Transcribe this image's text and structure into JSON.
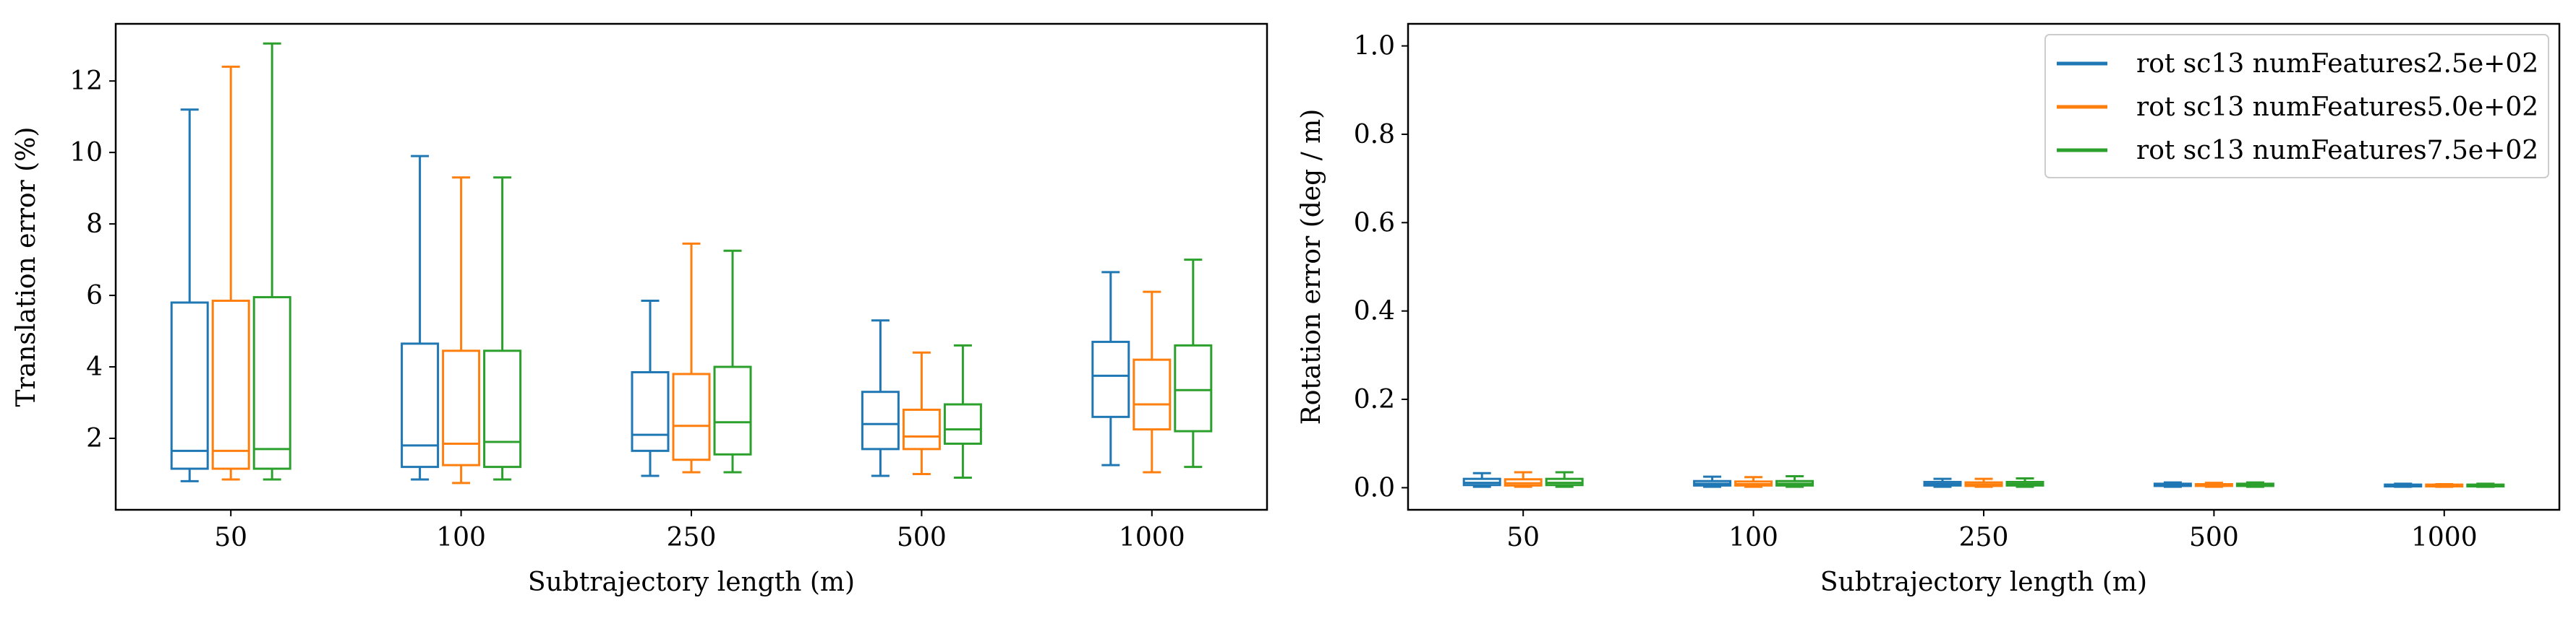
{
  "colors": {
    "series": [
      "#1f77b4",
      "#ff7f0e",
      "#2ca02c"
    ]
  },
  "chart_data": [
    {
      "type": "box",
      "xlabel": "Subtrajectory length (m)",
      "ylabel": "Translation error (%)",
      "ylim": [
        0.0,
        13.6
      ],
      "yticks": [
        2,
        4,
        6,
        8,
        10,
        12
      ],
      "categories": [
        "50",
        "100",
        "250",
        "500",
        "1000"
      ],
      "grid": false,
      "series": [
        {
          "name": "",
          "color": "#1f77b4",
          "boxes": [
            {
              "whislo": 0.8,
              "q1": 1.15,
              "med": 1.65,
              "q3": 5.8,
              "whishi": 11.2
            },
            {
              "whislo": 0.85,
              "q1": 1.2,
              "med": 1.8,
              "q3": 4.65,
              "whishi": 9.9
            },
            {
              "whislo": 0.95,
              "q1": 1.65,
              "med": 2.1,
              "q3": 3.85,
              "whishi": 5.85
            },
            {
              "whislo": 0.95,
              "q1": 1.7,
              "med": 2.4,
              "q3": 3.3,
              "whishi": 5.3
            },
            {
              "whislo": 1.25,
              "q1": 2.6,
              "med": 3.75,
              "q3": 4.7,
              "whishi": 6.65
            }
          ]
        },
        {
          "name": "",
          "color": "#ff7f0e",
          "boxes": [
            {
              "whislo": 0.85,
              "q1": 1.15,
              "med": 1.65,
              "q3": 5.85,
              "whishi": 12.4
            },
            {
              "whislo": 0.75,
              "q1": 1.25,
              "med": 1.85,
              "q3": 4.45,
              "whishi": 9.3
            },
            {
              "whislo": 1.05,
              "q1": 1.4,
              "med": 2.35,
              "q3": 3.8,
              "whishi": 7.45
            },
            {
              "whislo": 1.0,
              "q1": 1.7,
              "med": 2.05,
              "q3": 2.8,
              "whishi": 4.4
            },
            {
              "whislo": 1.05,
              "q1": 2.25,
              "med": 2.95,
              "q3": 4.2,
              "whishi": 6.1
            }
          ]
        },
        {
          "name": "",
          "color": "#2ca02c",
          "boxes": [
            {
              "whislo": 0.85,
              "q1": 1.15,
              "med": 1.7,
              "q3": 5.95,
              "whishi": 13.05
            },
            {
              "whislo": 0.85,
              "q1": 1.2,
              "med": 1.9,
              "q3": 4.45,
              "whishi": 9.3
            },
            {
              "whislo": 1.05,
              "q1": 1.55,
              "med": 2.45,
              "q3": 4.0,
              "whishi": 7.25
            },
            {
              "whislo": 0.9,
              "q1": 1.85,
              "med": 2.25,
              "q3": 2.95,
              "whishi": 4.6
            },
            {
              "whislo": 1.2,
              "q1": 2.2,
              "med": 3.35,
              "q3": 4.6,
              "whishi": 7.0
            }
          ]
        }
      ]
    },
    {
      "type": "box",
      "xlabel": "Subtrajectory length (m)",
      "ylabel": "Rotation error (deg / m)",
      "ylim": [
        -0.05,
        1.05
      ],
      "yticks": [
        0.0,
        0.2,
        0.4,
        0.6,
        0.8,
        1.0
      ],
      "ytick_labels": [
        "0.0",
        "0.2",
        "0.4",
        "0.6",
        "0.8",
        "1.0"
      ],
      "categories": [
        "50",
        "100",
        "250",
        "500",
        "1000"
      ],
      "grid": false,
      "legend_position": "top-right",
      "series": [
        {
          "name": "rot sc13 numFeatures2.5e+02",
          "color": "#1f77b4",
          "boxes": [
            {
              "whislo": 0.002,
              "q1": 0.006,
              "med": 0.011,
              "q3": 0.02,
              "whishi": 0.033
            },
            {
              "whislo": 0.002,
              "q1": 0.005,
              "med": 0.009,
              "q3": 0.015,
              "whishi": 0.025
            },
            {
              "whislo": 0.002,
              "q1": 0.005,
              "med": 0.008,
              "q3": 0.013,
              "whishi": 0.02
            },
            {
              "whislo": 0.002,
              "q1": 0.004,
              "med": 0.006,
              "q3": 0.009,
              "whishi": 0.012
            },
            {
              "whislo": 0.002,
              "q1": 0.003,
              "med": 0.005,
              "q3": 0.007,
              "whishi": 0.009
            }
          ]
        },
        {
          "name": "rot sc13 numFeatures5.0e+02",
          "color": "#ff7f0e",
          "boxes": [
            {
              "whislo": 0.002,
              "q1": 0.005,
              "med": 0.01,
              "q3": 0.019,
              "whishi": 0.035
            },
            {
              "whislo": 0.002,
              "q1": 0.005,
              "med": 0.008,
              "q3": 0.014,
              "whishi": 0.024
            },
            {
              "whislo": 0.002,
              "q1": 0.004,
              "med": 0.007,
              "q3": 0.012,
              "whishi": 0.02
            },
            {
              "whislo": 0.002,
              "q1": 0.004,
              "med": 0.006,
              "q3": 0.008,
              "whishi": 0.011
            },
            {
              "whislo": 0.002,
              "q1": 0.003,
              "med": 0.005,
              "q3": 0.007,
              "whishi": 0.008
            }
          ]
        },
        {
          "name": "rot sc13 numFeatures7.5e+02",
          "color": "#2ca02c",
          "boxes": [
            {
              "whislo": 0.002,
              "q1": 0.006,
              "med": 0.011,
              "q3": 0.02,
              "whishi": 0.035
            },
            {
              "whislo": 0.002,
              "q1": 0.005,
              "med": 0.009,
              "q3": 0.015,
              "whishi": 0.026
            },
            {
              "whislo": 0.002,
              "q1": 0.005,
              "med": 0.008,
              "q3": 0.013,
              "whishi": 0.021
            },
            {
              "whislo": 0.002,
              "q1": 0.004,
              "med": 0.006,
              "q3": 0.009,
              "whishi": 0.012
            },
            {
              "whislo": 0.002,
              "q1": 0.003,
              "med": 0.005,
              "q3": 0.007,
              "whishi": 0.009
            }
          ]
        }
      ]
    }
  ]
}
